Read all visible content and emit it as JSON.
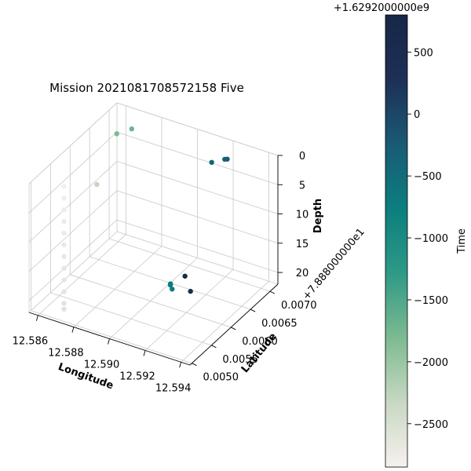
{
  "chart_data": {
    "type": "scatter",
    "projection": "3d",
    "title": "Mission 2021081708572158 Five",
    "xlabel": "Longitude",
    "ylabel": "Latitude",
    "zlabel": "Depth",
    "x_ticks": [
      "12.586",
      "12.588",
      "12.590",
      "12.592",
      "12.594"
    ],
    "y_ticks": [
      "0.0050",
      "0.0055",
      "0.0060",
      "0.0065",
      "0.0070"
    ],
    "y_offset_text": "+7.888000000e1",
    "z_ticks": [
      "0",
      "5",
      "10",
      "15",
      "20"
    ],
    "z_inverted": true,
    "xlim": [
      12.5855,
      12.5945
    ],
    "ylim": [
      0.00495,
      0.0072
    ],
    "zlim": [
      0,
      22
    ],
    "grid": true,
    "colorbar": {
      "label": "Time",
      "offset_text": "+1.6292000000e9",
      "ticks": [
        "500",
        "0",
        "−500",
        "−1000",
        "−1500",
        "−2000",
        "−2500"
      ],
      "tick_values": [
        500,
        0,
        -500,
        -1000,
        -1500,
        -2000,
        -2500
      ],
      "vmin": -2850,
      "vmax": 800,
      "colors": [
        "#f6f1ee",
        "#c8d8c2",
        "#7dba91",
        "#2e9a86",
        "#0b7f7e",
        "#1a5a75",
        "#1e2f56",
        "#162747"
      ]
    },
    "series": [
      {
        "points": [
          {
            "x": 12.5868,
            "y": 0.00525,
            "z": 1.0,
            "t": -2800
          },
          {
            "x": 12.5868,
            "y": 0.00525,
            "z": 3.0,
            "t": -2780
          },
          {
            "x": 12.5868,
            "y": 0.00525,
            "z": 5.0,
            "t": -2760
          },
          {
            "x": 12.5868,
            "y": 0.00525,
            "z": 7.0,
            "t": -2740
          },
          {
            "x": 12.5868,
            "y": 0.00525,
            "z": 9.0,
            "t": -2720
          },
          {
            "x": 12.5868,
            "y": 0.00525,
            "z": 11.0,
            "t": -2700
          },
          {
            "x": 12.5868,
            "y": 0.00525,
            "z": 13.0,
            "t": -2680
          },
          {
            "x": 12.5868,
            "y": 0.00525,
            "z": 15.0,
            "t": -2660
          },
          {
            "x": 12.5868,
            "y": 0.00525,
            "z": 17.0,
            "t": -2640
          },
          {
            "x": 12.5868,
            "y": 0.00525,
            "z": 19.0,
            "t": -2620
          },
          {
            "x": 12.5868,
            "y": 0.00525,
            "z": 21.0,
            "t": -2600
          },
          {
            "x": 12.5868,
            "y": 0.00525,
            "z": 22.0,
            "t": -2580
          },
          {
            "x": 12.5882,
            "y": 0.00545,
            "z": 0.5,
            "t": -2300
          },
          {
            "x": 12.5868,
            "y": 0.0066,
            "z": 0.3,
            "t": -1800
          },
          {
            "x": 12.5872,
            "y": 0.0068,
            "z": 0.3,
            "t": -1700
          },
          {
            "x": 12.5922,
            "y": 0.0055,
            "z": 14.0,
            "t": -800
          },
          {
            "x": 12.5921,
            "y": 0.00555,
            "z": 14.2,
            "t": -750
          },
          {
            "x": 12.5923,
            "y": 0.0055,
            "z": 14.6,
            "t": -700
          },
          {
            "x": 12.5928,
            "y": 0.0056,
            "z": 12.5,
            "t": 600
          },
          {
            "x": 12.593,
            "y": 0.00565,
            "z": 15.2,
            "t": 400
          },
          {
            "x": 12.592,
            "y": 0.00665,
            "z": 0.3,
            "t": -400
          },
          {
            "x": 12.5924,
            "y": 0.0068,
            "z": 0.3,
            "t": -300
          },
          {
            "x": 12.5925,
            "y": 0.00682,
            "z": 0.3,
            "t": -250
          }
        ]
      }
    ]
  }
}
